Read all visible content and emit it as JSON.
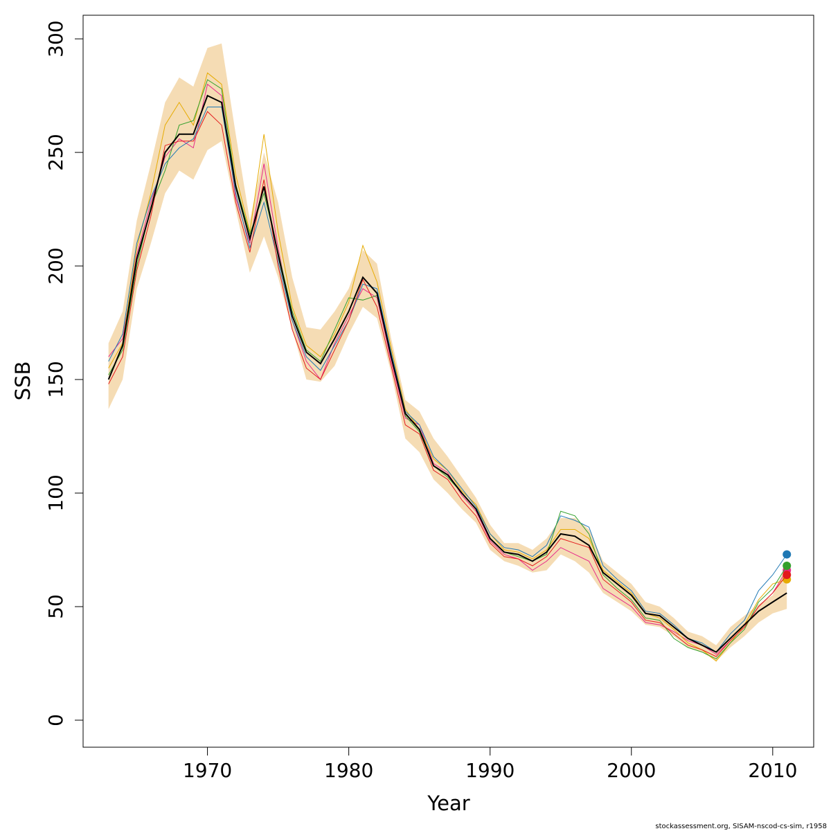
{
  "chart_data": {
    "type": "line",
    "xlabel": "Year",
    "ylabel": "SSB",
    "footer": "stockassessment.org, SISAM-nscod-cs-sim, r1958",
    "x": [
      1963,
      1964,
      1965,
      1966,
      1967,
      1968,
      1969,
      1970,
      1971,
      1972,
      1973,
      1974,
      1975,
      1976,
      1977,
      1978,
      1979,
      1980,
      1981,
      1982,
      1983,
      1984,
      1985,
      1986,
      1987,
      1988,
      1989,
      1990,
      1991,
      1992,
      1993,
      1994,
      1995,
      1996,
      1997,
      1998,
      1999,
      2000,
      2001,
      2002,
      2003,
      2004,
      2005,
      2006,
      2007,
      2008,
      2009,
      2010,
      2011
    ],
    "xlim": [
      1961.2,
      2012.9
    ],
    "xticks": [
      1970,
      1980,
      1990,
      2000,
      2010
    ],
    "ylim": [
      -11.9,
      310.4
    ],
    "yticks": [
      0,
      50,
      100,
      150,
      200,
      250,
      300
    ],
    "band": {
      "color": "#f5dcb4",
      "upper": [
        166,
        180,
        220,
        245,
        272,
        283,
        279,
        296,
        298,
        258,
        220,
        250,
        228,
        195,
        173,
        172,
        180,
        190,
        207,
        201,
        168,
        141,
        136,
        124,
        116,
        107,
        98,
        86,
        78,
        78,
        75,
        80,
        89,
        89,
        84,
        70,
        65,
        60,
        52,
        50,
        45,
        39,
        37,
        33,
        41,
        46,
        51,
        55,
        69
      ],
      "lower": [
        137,
        150,
        190,
        210,
        232,
        242,
        238,
        251,
        255,
        225,
        197,
        213,
        195,
        172,
        150,
        149,
        156,
        170,
        182,
        177,
        153,
        124,
        118,
        106,
        100,
        93,
        87,
        75,
        70,
        68,
        65,
        66,
        73,
        70,
        65,
        56,
        52,
        48,
        42,
        41,
        37,
        32,
        30,
        26,
        32,
        37,
        43,
        47,
        49
      ]
    },
    "series": [
      {
        "color": "#e7298a",
        "values": [
          160,
          168,
          205,
          228,
          248,
          256,
          252,
          280,
          275,
          230,
          210,
          245,
          208,
          176,
          158,
          150,
          166,
          178,
          190,
          186,
          158,
          133,
          130,
          113,
          109,
          99,
          92,
          79,
          73,
          71,
          66,
          70,
          76,
          73,
          70,
          58,
          54,
          50,
          43,
          42,
          39,
          35,
          33,
          29,
          35,
          41,
          50,
          56,
          66
        ]
      },
      {
        "color": "#e6ab02",
        "values": [
          155,
          166,
          208,
          232,
          262,
          272,
          262,
          285,
          280,
          240,
          215,
          258,
          215,
          182,
          165,
          160,
          170,
          184,
          209,
          193,
          164,
          137,
          128,
          115,
          110,
          101,
          95,
          82,
          75,
          74,
          71,
          75,
          84,
          84,
          80,
          66,
          61,
          56,
          47,
          45,
          40,
          34,
          31,
          26,
          34,
          42,
          53,
          60,
          62
        ]
      },
      {
        "color": "#1f78b4",
        "values": [
          158,
          170,
          210,
          230,
          245,
          252,
          256,
          270,
          270,
          232,
          208,
          228,
          202,
          176,
          160,
          154,
          165,
          176,
          192,
          190,
          162,
          136,
          130,
          116,
          110,
          102,
          94,
          82,
          76,
          75,
          72,
          77,
          90,
          88,
          85,
          68,
          62,
          57,
          48,
          47,
          42,
          36,
          34,
          30,
          38,
          44,
          57,
          64,
          73
        ]
      },
      {
        "color": "#33a02c",
        "values": [
          152,
          163,
          200,
          226,
          242,
          262,
          264,
          282,
          278,
          236,
          214,
          232,
          206,
          180,
          163,
          158,
          172,
          186,
          185,
          187,
          160,
          134,
          127,
          112,
          107,
          100,
          93,
          80,
          74,
          72,
          70,
          73,
          92,
          90,
          82,
          64,
          58,
          53,
          45,
          44,
          36,
          32,
          30,
          27,
          34,
          40,
          52,
          58,
          68
        ]
      },
      {
        "color": "#e31a1c",
        "values": [
          148,
          160,
          198,
          222,
          253,
          255,
          255,
          268,
          262,
          228,
          206,
          238,
          200,
          172,
          155,
          150,
          163,
          176,
          194,
          182,
          156,
          130,
          126,
          110,
          106,
          97,
          90,
          78,
          72,
          71,
          68,
          72,
          80,
          78,
          76,
          62,
          57,
          52,
          44,
          43,
          38,
          33,
          31,
          28,
          35,
          41,
          50,
          56,
          64
        ]
      },
      {
        "color": "#000000",
        "values": [
          150,
          165,
          203,
          225,
          250,
          258,
          258,
          275,
          272,
          235,
          212,
          235,
          205,
          178,
          162,
          157,
          168,
          180,
          195,
          188,
          160,
          135,
          128,
          112,
          108,
          100,
          93,
          80,
          74,
          73,
          70,
          74,
          82,
          81,
          77,
          65,
          60,
          55,
          47,
          46,
          41,
          36,
          33,
          30,
          36,
          42,
          48,
          52,
          56
        ]
      }
    ]
  }
}
